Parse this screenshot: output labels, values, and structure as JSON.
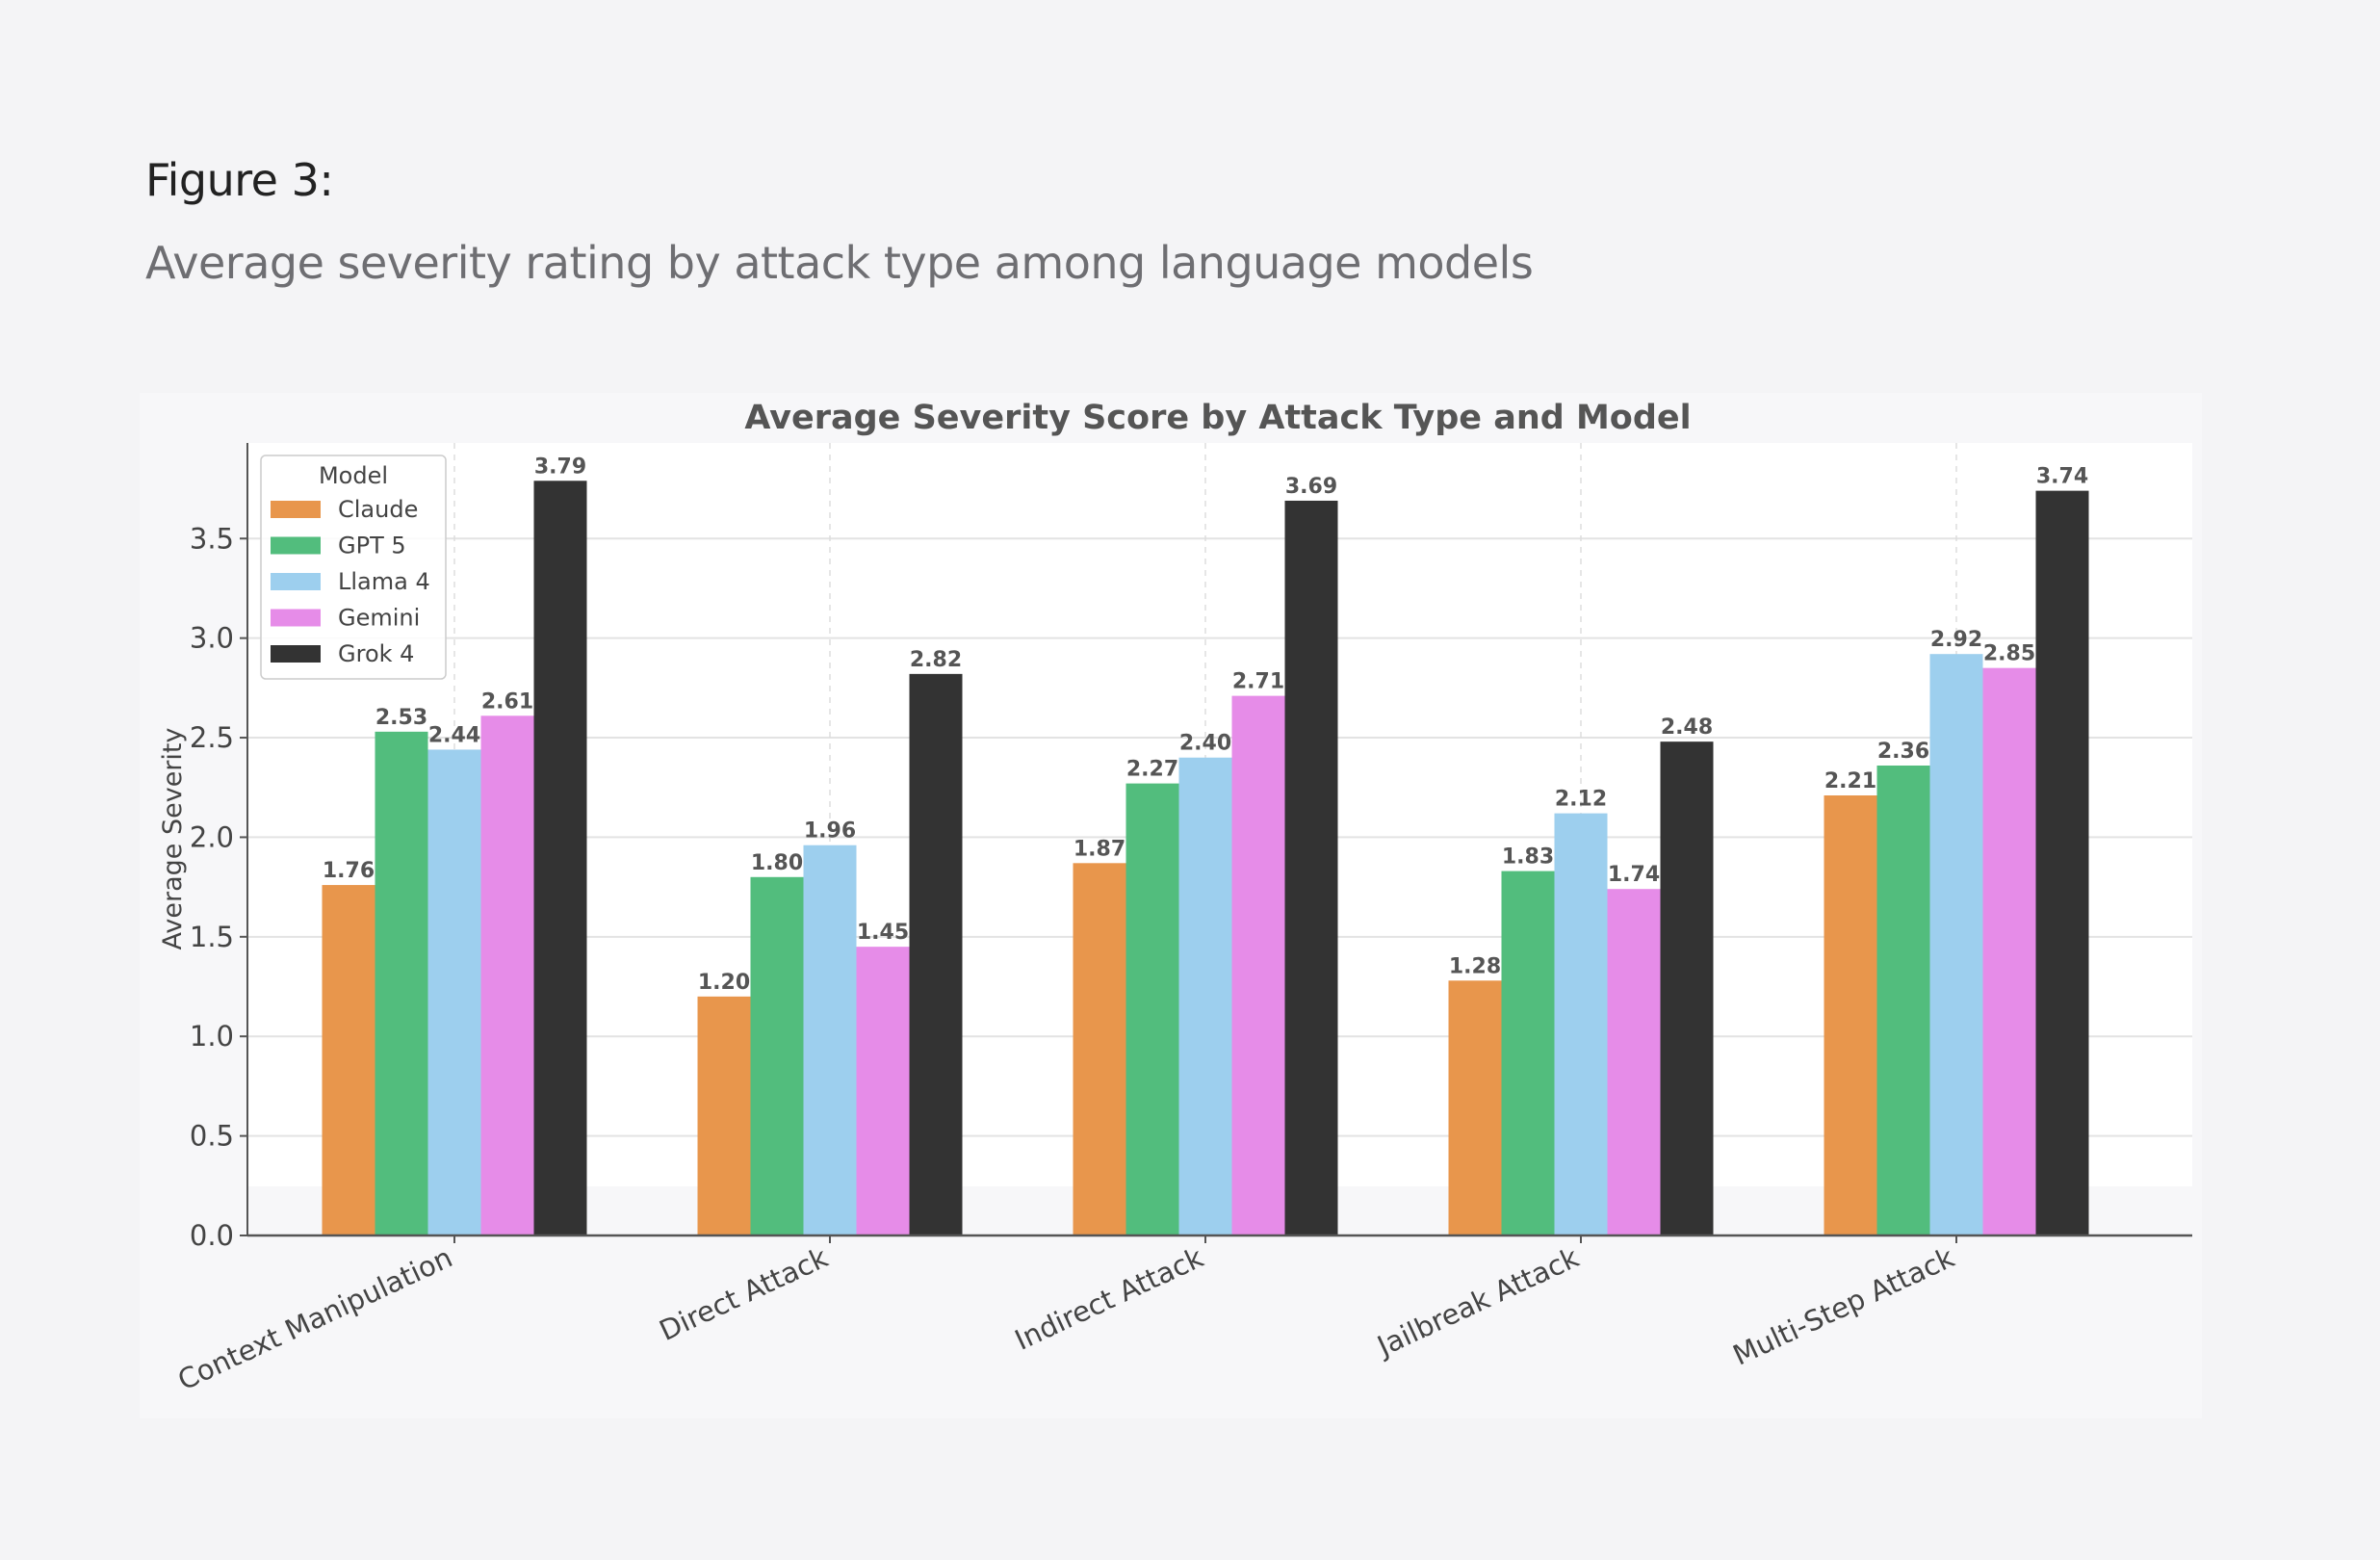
{
  "figure": {
    "label": "Figure 3:",
    "caption": "Average severity rating by attack type among language models"
  },
  "chart_data": {
    "type": "bar",
    "title": "Average Severity Score by Attack Type and Model",
    "xlabel": "",
    "ylabel": "Average Severity",
    "ylim": [
      0,
      3.98
    ],
    "yticks": [
      0.0,
      0.5,
      1.0,
      1.5,
      2.0,
      2.5,
      3.0,
      3.5
    ],
    "grid": true,
    "legend": {
      "title": "Model",
      "placement": "top-left"
    },
    "categories": [
      "Context Manipulation",
      "Direct Attack",
      "Indirect Attack",
      "Jailbreak Attack",
      "Multi-Step Attack"
    ],
    "series": [
      {
        "name": "Claude",
        "color": "#e8964c",
        "values": [
          1.76,
          1.2,
          1.87,
          1.28,
          2.21
        ]
      },
      {
        "name": "GPT 5",
        "color": "#52bd7d",
        "values": [
          2.53,
          1.8,
          2.27,
          1.83,
          2.36
        ]
      },
      {
        "name": "Llama 4",
        "color": "#9dcfee",
        "values": [
          2.44,
          1.96,
          2.4,
          2.12,
          2.92
        ]
      },
      {
        "name": "Gemini",
        "color": "#e68ce8",
        "values": [
          2.61,
          1.45,
          2.71,
          1.74,
          2.85
        ]
      },
      {
        "name": "Grok 4",
        "color": "#333333",
        "values": [
          3.79,
          2.82,
          3.69,
          2.48,
          3.74
        ]
      }
    ]
  }
}
